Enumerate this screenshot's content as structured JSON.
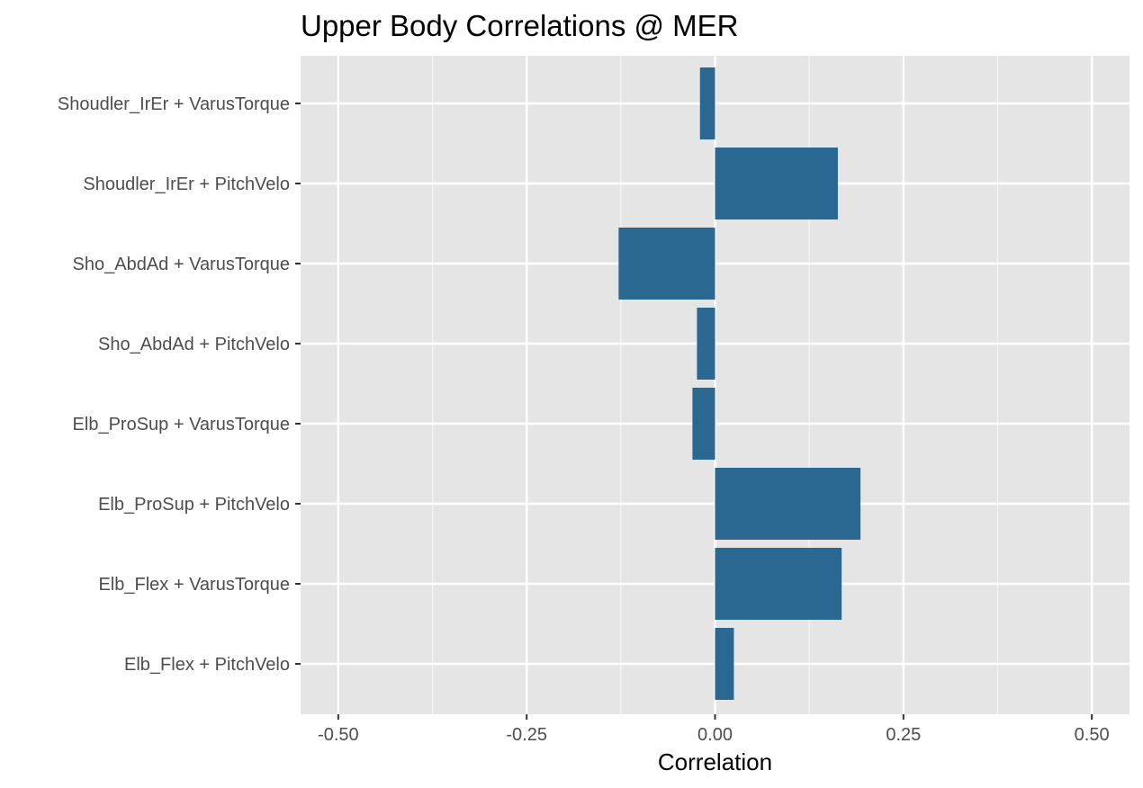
{
  "chart_data": {
    "type": "bar",
    "orientation": "horizontal",
    "title": "Upper Body Correlations @ MER",
    "xlabel": "Correlation",
    "ylabel": "",
    "xlim": [
      -0.55,
      0.55
    ],
    "xticks": [
      -0.5,
      -0.25,
      0.0,
      0.25,
      0.5
    ],
    "xtick_labels": [
      "-0.50",
      "-0.25",
      "0.00",
      "0.25",
      "0.50"
    ],
    "categories": [
      "Shoudler_IrEr + VarusTorque",
      "Shoudler_IrEr + PitchVelo",
      "Sho_AbdAd + VarusTorque",
      "Sho_AbdAd + PitchVelo",
      "Elb_ProSup + VarusTorque",
      "Elb_ProSup + PitchVelo",
      "Elb_Flex + VarusTorque",
      "Elb_Flex + PitchVelo"
    ],
    "values": [
      -0.02,
      0.163,
      -0.128,
      -0.024,
      -0.03,
      0.193,
      0.168,
      0.025
    ],
    "bar_color": "#2b6891",
    "panel_background": "#e5e5e5",
    "grid": true,
    "legend": "none"
  }
}
